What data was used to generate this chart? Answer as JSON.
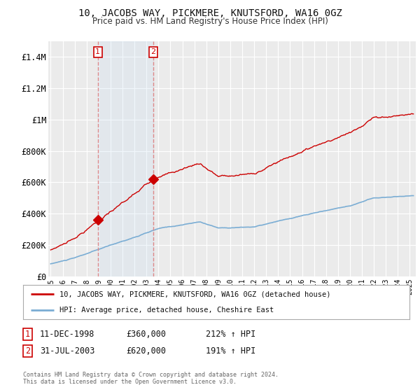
{
  "title": "10, JACOBS WAY, PICKMERE, KNUTSFORD, WA16 0GZ",
  "subtitle": "Price paid vs. HM Land Registry's House Price Index (HPI)",
  "ylim": [
    0,
    1500000
  ],
  "yticks": [
    0,
    200000,
    400000,
    600000,
    800000,
    1000000,
    1200000,
    1400000
  ],
  "ytick_labels": [
    "£0",
    "£200K",
    "£400K",
    "£600K",
    "£800K",
    "£1M",
    "£1.2M",
    "£1.4M"
  ],
  "background_color": "#ffffff",
  "plot_bg_color": "#ebebeb",
  "grid_color": "#ffffff",
  "p1_date": 1998.94,
  "p1_price": 360000,
  "p2_date": 2003.58,
  "p2_price": 620000,
  "line_color_house": "#cc0000",
  "line_color_hpi": "#7aadd4",
  "legend_house_label": "10, JACOBS WAY, PICKMERE, KNUTSFORD, WA16 0GZ (detached house)",
  "legend_hpi_label": "HPI: Average price, detached house, Cheshire East",
  "footer": "Contains HM Land Registry data © Crown copyright and database right 2024.\nThis data is licensed under the Open Government Licence v3.0.",
  "xmin": 1994.8,
  "xmax": 2025.5
}
